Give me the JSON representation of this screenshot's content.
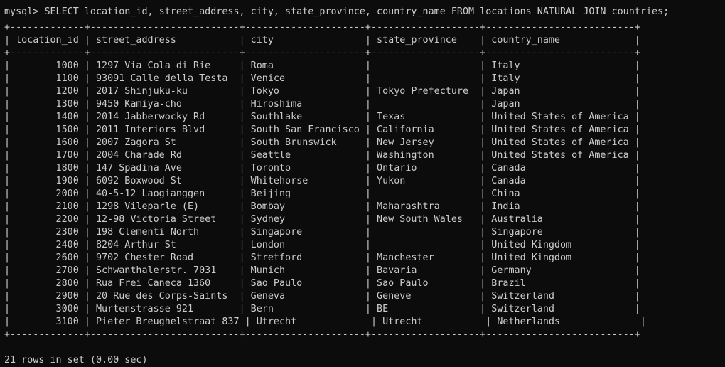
{
  "terminal": {
    "prompt": "mysql> ",
    "command": "SELECT location_id, street_address, city, state_province, country_name FROM locations NATURAL JOIN countries;",
    "border": "+-------------+--------------------------+---------------------+-------------------+--------------------------+",
    "header": "| location_id | street_address           | city                | state_province    | country_name             |",
    "rows": [
      "|        1000 | 1297 Via Cola di Rie     | Roma                |                   | Italy                    |",
      "|        1100 | 93091 Calle della Testa  | Venice              |                   | Italy                    |",
      "|        1200 | 2017 Shinjuku-ku         | Tokyo               | Tokyo Prefecture  | Japan                    |",
      "|        1300 | 9450 Kamiya-cho          | Hiroshima           |                   | Japan                    |",
      "|        1400 | 2014 Jabberwocky Rd      | Southlake           | Texas             | United States of America |",
      "|        1500 | 2011 Interiors Blvd      | South San Francisco | California        | United States of America |",
      "|        1600 | 2007 Zagora St           | South Brunswick     | New Jersey        | United States of America |",
      "|        1700 | 2004 Charade Rd          | Seattle             | Washington        | United States of America |",
      "|        1800 | 147 Spadina Ave          | Toronto             | Ontario           | Canada                   |",
      "|        1900 | 6092 Boxwood St          | Whitehorse          | Yukon             | Canada                   |",
      "|        2000 | 40-5-12 Laogianggen      | Beijing             |                   | China                    |",
      "|        2100 | 1298 Vileparle (E)       | Bombay              | Maharashtra       | India                    |",
      "|        2200 | 12-98 Victoria Street    | Sydney              | New South Wales   | Australia                |",
      "|        2300 | 198 Clementi North       | Singapore           |                   | Singapore                |",
      "|        2400 | 8204 Arthur St           | London              |                   | United Kingdom           |",
      "|        2600 | 9702 Chester Road        | Stretford           | Manchester        | United Kingdom           |",
      "|        2700 | Schwanthalerstr. 7031    | Munich              | Bavaria           | Germany                  |",
      "|        2800 | Rua Frei Caneca 1360     | Sao Paulo           | Sao Paulo         | Brazil                   |",
      "|        2900 | 20 Rue des Corps-Saints  | Geneva              | Geneve            | Switzerland              |",
      "|        3000 | Murtenstrasse 921        | Bern                | BE                | Switzerland              |",
      "|        3100 | Pieter Breughelstraat 837 | Utrecht             | Utrecht           | Netherlands              |"
    ],
    "summary": "21 rows in set (0.00 sec)"
  }
}
